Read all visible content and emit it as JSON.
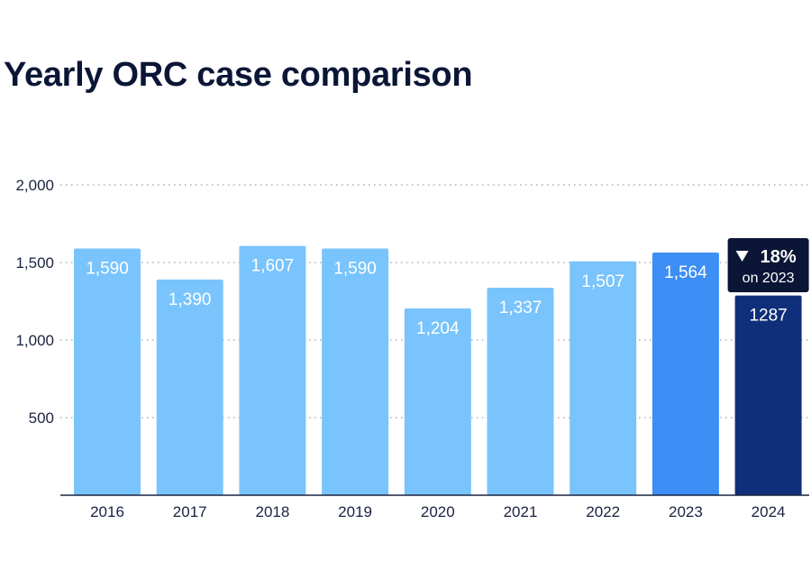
{
  "chart_data": {
    "type": "bar",
    "title": "Yearly ORC case comparison",
    "categories": [
      "2016",
      "2017",
      "2018",
      "2019",
      "2020",
      "2021",
      "2022",
      "2023",
      "2024"
    ],
    "values": [
      1590,
      1390,
      1607,
      1590,
      1204,
      1337,
      1507,
      1564,
      1287
    ],
    "data_labels": [
      "1,590",
      "1,390",
      "1,607",
      "1,590",
      "1,204",
      "1,337",
      "1,507",
      "1,564",
      "1287"
    ],
    "yticks": [
      500,
      1000,
      1500,
      2000
    ],
    "ytick_labels": [
      "500",
      "1,000",
      "1,500",
      "2,000"
    ],
    "ylim": [
      0,
      2000
    ],
    "grid": true,
    "colors": {
      "default": "#79c4fc",
      "highlight_2023": "#3d8ef5",
      "highlight_2024": "#0f2f7a",
      "badge": "#0b1636"
    },
    "annotation": {
      "change": "18%",
      "direction": "down",
      "sub": "on 2023"
    }
  }
}
